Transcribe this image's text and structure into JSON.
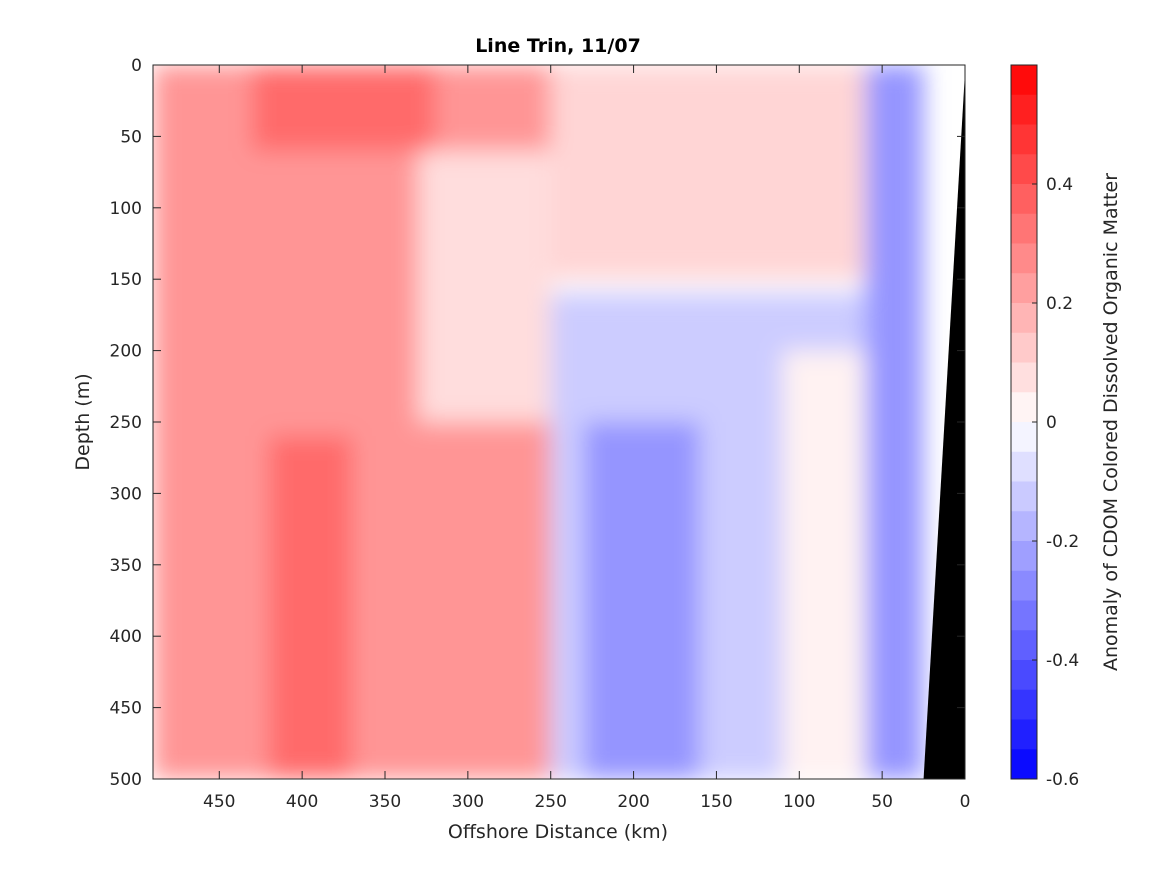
{
  "chart_data": {
    "type": "heatmap",
    "subtype": "filled-contour",
    "title": "Line Trin, 11/07",
    "xlabel": "Offshore Distance (km)",
    "ylabel": "Depth (m)",
    "colorbar_label": "Anomaly of CDOM Colored Dissolved Organic Matter",
    "xlim": [
      490,
      0
    ],
    "ylim": [
      0,
      500
    ],
    "x_reversed": true,
    "y_reversed": true,
    "x_ticks": [
      450,
      400,
      350,
      300,
      250,
      200,
      150,
      100,
      50,
      0
    ],
    "y_ticks": [
      0,
      50,
      100,
      150,
      200,
      250,
      300,
      350,
      400,
      450,
      500
    ],
    "colorbar": {
      "clim": [
        -0.6,
        0.6
      ],
      "ticks": [
        0.4,
        0.2,
        0,
        -0.2,
        -0.4,
        -0.6
      ],
      "tick_labels": [
        "0.4",
        "0.2",
        "0",
        "-0.2",
        "-0.4",
        "-0.6"
      ],
      "levels": 24,
      "colormap": "blue-white-red",
      "neg_color": "#0000ff",
      "pos_color": "#ff0000",
      "zero_color": "#ffffff"
    },
    "contour_line_level": 0,
    "bathymetry_color": "#000000",
    "bathymetry": [
      [
        25,
        500
      ],
      [
        0,
        5
      ]
    ],
    "regions": [
      {
        "x": [
          490,
          250
        ],
        "y": [
          0,
          500
        ],
        "anomaly": 0.25
      },
      {
        "x": [
          430,
          320
        ],
        "y": [
          0,
          60
        ],
        "anomaly": 0.35
      },
      {
        "x": [
          420,
          370
        ],
        "y": [
          260,
          500
        ],
        "anomaly": 0.35
      },
      {
        "x": [
          330,
          250
        ],
        "y": [
          60,
          250
        ],
        "anomaly": 0.08
      },
      {
        "x": [
          250,
          60
        ],
        "y": [
          0,
          150
        ],
        "anomaly": 0.1
      },
      {
        "x": [
          250,
          60
        ],
        "y": [
          160,
          500
        ],
        "anomaly": -0.12
      },
      {
        "x": [
          230,
          160
        ],
        "y": [
          250,
          500
        ],
        "anomaly": -0.25
      },
      {
        "x": [
          110,
          60
        ],
        "y": [
          200,
          500
        ],
        "anomaly": 0.03
      },
      {
        "x": [
          60,
          25
        ],
        "y": [
          0,
          500
        ],
        "anomaly": -0.25
      }
    ]
  }
}
